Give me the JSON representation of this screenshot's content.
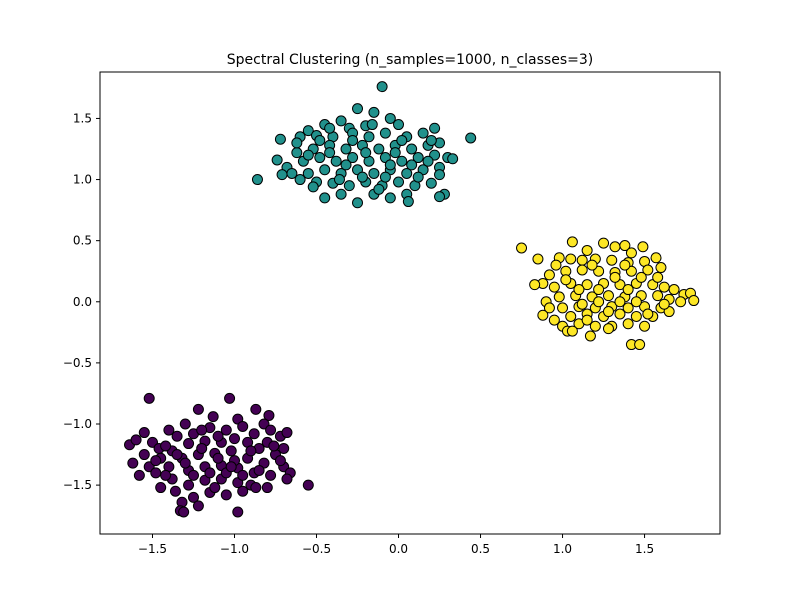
{
  "chart_data": {
    "type": "scatter",
    "title": "Spectral Clustering (n_samples=1000, n_classes=3)",
    "xlabel": "",
    "ylabel": "",
    "xlim": [
      -1.82,
      1.96
    ],
    "ylim": [
      -1.9,
      1.88
    ],
    "xticks": [
      -1.5,
      -1.0,
      -0.5,
      0.0,
      0.5,
      1.0,
      1.5
    ],
    "xtick_labels": [
      "−1.5",
      "−1.0",
      "−0.5",
      "0.0",
      "0.5",
      "1.0",
      "1.5"
    ],
    "yticks": [
      -1.5,
      -1.0,
      -0.5,
      0.0,
      0.5,
      1.0,
      1.5
    ],
    "ytick_labels": [
      "−1.5",
      "−1.0",
      "−0.5",
      "0.0",
      "0.5",
      "1.0",
      "1.5"
    ],
    "grid": false,
    "legend": "none",
    "marker_edge_color": "#000000",
    "series": [
      {
        "cluster": 0,
        "color": "#440154",
        "center": [
          -1.1,
          -1.3
        ],
        "points": [
          [
            -1.52,
            -0.79
          ],
          [
            -1.03,
            -0.79
          ],
          [
            -0.87,
            -0.88
          ],
          [
            -1.22,
            -0.88
          ],
          [
            -1.13,
            -0.94
          ],
          [
            -0.98,
            -0.96
          ],
          [
            -0.79,
            -0.93
          ],
          [
            -0.82,
            -1.0
          ],
          [
            -1.3,
            -1.0
          ],
          [
            -1.4,
            -1.05
          ],
          [
            -1.55,
            -1.07
          ],
          [
            -1.64,
            -1.17
          ],
          [
            -1.6,
            -1.13
          ],
          [
            -1.5,
            -1.15
          ],
          [
            -1.46,
            -1.2
          ],
          [
            -1.35,
            -1.1
          ],
          [
            -1.25,
            -1.08
          ],
          [
            -1.15,
            -1.03
          ],
          [
            -1.05,
            -1.05
          ],
          [
            -0.95,
            -1.02
          ],
          [
            -0.88,
            -1.08
          ],
          [
            -0.78,
            -1.05
          ],
          [
            -0.72,
            -1.1
          ],
          [
            -0.68,
            -1.07
          ],
          [
            -0.7,
            -1.2
          ],
          [
            -0.75,
            -1.25
          ],
          [
            -0.85,
            -1.2
          ],
          [
            -0.92,
            -1.15
          ],
          [
            -1.0,
            -1.12
          ],
          [
            -1.08,
            -1.15
          ],
          [
            -1.18,
            -1.14
          ],
          [
            -1.28,
            -1.16
          ],
          [
            -1.38,
            -1.22
          ],
          [
            -1.45,
            -1.28
          ],
          [
            -1.52,
            -1.35
          ],
          [
            -1.62,
            -1.32
          ],
          [
            -1.58,
            -1.42
          ],
          [
            -1.48,
            -1.4
          ],
          [
            -1.4,
            -1.35
          ],
          [
            -1.32,
            -1.28
          ],
          [
            -1.22,
            -1.25
          ],
          [
            -1.12,
            -1.24
          ],
          [
            -1.02,
            -1.22
          ],
          [
            -0.92,
            -1.28
          ],
          [
            -0.82,
            -1.32
          ],
          [
            -0.7,
            -1.35
          ],
          [
            -0.66,
            -1.4
          ],
          [
            -0.68,
            -1.45
          ],
          [
            -0.78,
            -1.42
          ],
          [
            -0.88,
            -1.4
          ],
          [
            -0.98,
            -1.36
          ],
          [
            -1.08,
            -1.34
          ],
          [
            -1.18,
            -1.35
          ],
          [
            -1.28,
            -1.38
          ],
          [
            -1.38,
            -1.45
          ],
          [
            -1.45,
            -1.52
          ],
          [
            -1.36,
            -1.55
          ],
          [
            -1.28,
            -1.5
          ],
          [
            -1.18,
            -1.46
          ],
          [
            -1.08,
            -1.45
          ],
          [
            -0.98,
            -1.48
          ],
          [
            -0.9,
            -1.5
          ],
          [
            -0.8,
            -1.52
          ],
          [
            -0.55,
            -1.5
          ],
          [
            -0.95,
            -1.55
          ],
          [
            -1.05,
            -1.58
          ],
          [
            -1.15,
            -1.56
          ],
          [
            -1.25,
            -1.6
          ],
          [
            -1.32,
            -1.64
          ],
          [
            -1.22,
            -1.67
          ],
          [
            -1.33,
            -1.71
          ],
          [
            -1.31,
            -1.72
          ],
          [
            -0.98,
            -1.72
          ],
          [
            -0.87,
            -1.52
          ],
          [
            -1.42,
            -1.18
          ],
          [
            -1.2,
            -1.2
          ],
          [
            -1.1,
            -1.28
          ],
          [
            -1.0,
            -1.3
          ],
          [
            -0.9,
            -1.22
          ],
          [
            -1.3,
            -1.32
          ],
          [
            -1.15,
            -1.4
          ],
          [
            -1.05,
            -1.4
          ],
          [
            -0.95,
            -1.42
          ],
          [
            -1.25,
            -1.42
          ],
          [
            -1.35,
            -1.25
          ],
          [
            -1.48,
            -1.3
          ],
          [
            -1.55,
            -1.25
          ],
          [
            -1.2,
            -1.05
          ],
          [
            -1.1,
            -1.1
          ],
          [
            -0.8,
            -1.15
          ],
          [
            -0.72,
            -1.3
          ],
          [
            -0.85,
            -1.38
          ],
          [
            -1.42,
            -1.42
          ],
          [
            -1.12,
            -1.52
          ],
          [
            -1.02,
            -1.35
          ],
          [
            -0.76,
            -1.18
          ]
        ]
      },
      {
        "cluster": 1,
        "color": "#21918c",
        "center": [
          -0.15,
          1.1
        ],
        "points": [
          [
            -0.1,
            1.76
          ],
          [
            -0.25,
            1.58
          ],
          [
            -0.15,
            1.55
          ],
          [
            -0.35,
            1.48
          ],
          [
            -0.45,
            1.45
          ],
          [
            -0.3,
            1.42
          ],
          [
            -0.2,
            1.44
          ],
          [
            -0.05,
            1.5
          ],
          [
            0.0,
            1.45
          ],
          [
            -0.55,
            1.4
          ],
          [
            -0.72,
            1.33
          ],
          [
            -0.6,
            1.35
          ],
          [
            -0.5,
            1.36
          ],
          [
            -0.4,
            1.35
          ],
          [
            -0.28,
            1.38
          ],
          [
            -0.18,
            1.35
          ],
          [
            -0.08,
            1.38
          ],
          [
            0.05,
            1.35
          ],
          [
            0.15,
            1.38
          ],
          [
            0.22,
            1.42
          ],
          [
            0.44,
            1.34
          ],
          [
            0.25,
            1.3
          ],
          [
            0.18,
            1.28
          ],
          [
            0.08,
            1.25
          ],
          [
            -0.02,
            1.28
          ],
          [
            -0.12,
            1.25
          ],
          [
            -0.22,
            1.28
          ],
          [
            -0.32,
            1.25
          ],
          [
            -0.42,
            1.28
          ],
          [
            -0.52,
            1.25
          ],
          [
            -0.62,
            1.22
          ],
          [
            -0.74,
            1.16
          ],
          [
            -0.68,
            1.1
          ],
          [
            -0.58,
            1.15
          ],
          [
            -0.48,
            1.18
          ],
          [
            -0.38,
            1.15
          ],
          [
            -0.28,
            1.18
          ],
          [
            -0.18,
            1.15
          ],
          [
            -0.08,
            1.18
          ],
          [
            0.02,
            1.15
          ],
          [
            0.12,
            1.18
          ],
          [
            0.22,
            1.2
          ],
          [
            0.3,
            1.18
          ],
          [
            0.33,
            1.17
          ],
          [
            0.25,
            1.1
          ],
          [
            0.15,
            1.08
          ],
          [
            0.05,
            1.05
          ],
          [
            -0.05,
            1.08
          ],
          [
            -0.15,
            1.05
          ],
          [
            -0.25,
            1.08
          ],
          [
            -0.35,
            1.05
          ],
          [
            -0.45,
            1.08
          ],
          [
            -0.55,
            1.05
          ],
          [
            -0.65,
            1.05
          ],
          [
            -0.71,
            1.04
          ],
          [
            -0.86,
            1.0
          ],
          [
            -0.6,
            1.0
          ],
          [
            -0.5,
            0.98
          ],
          [
            -0.4,
            0.97
          ],
          [
            -0.3,
            0.95
          ],
          [
            -0.2,
            0.98
          ],
          [
            -0.1,
            0.95
          ],
          [
            0.0,
            0.98
          ],
          [
            0.1,
            0.95
          ],
          [
            0.2,
            0.97
          ],
          [
            0.25,
            1.04
          ],
          [
            0.28,
            0.88
          ],
          [
            0.25,
            0.86
          ],
          [
            0.05,
            0.88
          ],
          [
            -0.05,
            0.85
          ],
          [
            -0.15,
            0.88
          ],
          [
            -0.25,
            0.81
          ],
          [
            -0.35,
            0.88
          ],
          [
            -0.45,
            0.85
          ],
          [
            -0.52,
            0.94
          ],
          [
            0.06,
            0.82
          ],
          [
            -0.12,
            0.92
          ],
          [
            -0.22,
            1.02
          ],
          [
            -0.32,
            1.12
          ],
          [
            -0.42,
            1.22
          ],
          [
            -0.02,
            1.22
          ],
          [
            0.08,
            1.12
          ],
          [
            -0.62,
            1.3
          ],
          [
            -0.48,
            1.32
          ],
          [
            0.12,
            1.02
          ],
          [
            0.2,
            1.32
          ],
          [
            -0.16,
            1.45
          ],
          [
            -0.36,
            1.0
          ],
          [
            -0.08,
            1.02
          ],
          [
            -0.28,
            1.32
          ],
          [
            0.02,
            1.32
          ],
          [
            -0.55,
            1.2
          ],
          [
            0.18,
            1.15
          ],
          [
            -0.42,
            1.42
          ],
          [
            -0.2,
            1.22
          ],
          [
            -0.05,
            1.12
          ]
        ]
      },
      {
        "cluster": 2,
        "color": "#fde725",
        "center": [
          1.25,
          0.08
        ],
        "points": [
          [
            1.06,
            0.49
          ],
          [
            1.25,
            0.48
          ],
          [
            1.32,
            0.45
          ],
          [
            1.38,
            0.46
          ],
          [
            1.49,
            0.45
          ],
          [
            1.15,
            0.42
          ],
          [
            1.42,
            0.4
          ],
          [
            0.75,
            0.44
          ],
          [
            0.85,
            0.35
          ],
          [
            0.98,
            0.36
          ],
          [
            1.05,
            0.35
          ],
          [
            1.12,
            0.34
          ],
          [
            1.2,
            0.35
          ],
          [
            1.3,
            0.34
          ],
          [
            1.4,
            0.32
          ],
          [
            1.5,
            0.33
          ],
          [
            1.57,
            0.36
          ],
          [
            1.6,
            0.28
          ],
          [
            1.52,
            0.26
          ],
          [
            1.42,
            0.25
          ],
          [
            1.32,
            0.24
          ],
          [
            1.22,
            0.25
          ],
          [
            1.12,
            0.26
          ],
          [
            1.02,
            0.25
          ],
          [
            0.92,
            0.22
          ],
          [
            0.88,
            0.15
          ],
          [
            0.83,
            0.14
          ],
          [
            0.95,
            0.12
          ],
          [
            1.05,
            0.15
          ],
          [
            1.15,
            0.14
          ],
          [
            1.25,
            0.15
          ],
          [
            1.35,
            0.14
          ],
          [
            1.45,
            0.15
          ],
          [
            1.55,
            0.14
          ],
          [
            1.62,
            0.12
          ],
          [
            1.68,
            0.1
          ],
          [
            1.74,
            0.06
          ],
          [
            1.78,
            0.07
          ],
          [
            1.8,
            0.01
          ],
          [
            1.72,
            0.0
          ],
          [
            1.65,
            0.02
          ],
          [
            1.58,
            0.05
          ],
          [
            1.48,
            0.05
          ],
          [
            1.38,
            0.04
          ],
          [
            1.28,
            0.05
          ],
          [
            1.18,
            0.04
          ],
          [
            1.08,
            0.05
          ],
          [
            0.98,
            0.04
          ],
          [
            0.9,
            0.0
          ],
          [
            0.92,
            -0.05
          ],
          [
            1.0,
            -0.05
          ],
          [
            1.1,
            -0.04
          ],
          [
            1.2,
            -0.05
          ],
          [
            1.3,
            -0.04
          ],
          [
            1.4,
            -0.05
          ],
          [
            1.5,
            -0.04
          ],
          [
            1.6,
            -0.05
          ],
          [
            1.65,
            -0.08
          ],
          [
            1.55,
            -0.12
          ],
          [
            1.45,
            -0.12
          ],
          [
            1.35,
            -0.1
          ],
          [
            1.25,
            -0.12
          ],
          [
            1.15,
            -0.1
          ],
          [
            1.05,
            -0.12
          ],
          [
            0.95,
            -0.15
          ],
          [
            0.88,
            -0.11
          ],
          [
            1.0,
            -0.2
          ],
          [
            1.1,
            -0.18
          ],
          [
            1.2,
            -0.2
          ],
          [
            1.3,
            -0.2
          ],
          [
            1.4,
            -0.18
          ],
          [
            1.5,
            -0.2
          ],
          [
            1.03,
            -0.24
          ],
          [
            1.06,
            -0.24
          ],
          [
            1.17,
            -0.28
          ],
          [
            1.28,
            -0.22
          ],
          [
            1.42,
            -0.35
          ],
          [
            1.47,
            -0.35
          ],
          [
            1.35,
            0.0
          ],
          [
            1.22,
            0.1
          ],
          [
            1.12,
            -0.02
          ],
          [
            1.32,
            0.2
          ],
          [
            1.45,
            0.0
          ],
          [
            1.02,
            0.18
          ],
          [
            1.58,
            0.2
          ],
          [
            1.18,
            0.3
          ],
          [
            1.4,
            0.1
          ],
          [
            1.28,
            -0.08
          ],
          [
            1.1,
            0.1
          ],
          [
            1.52,
            -0.1
          ],
          [
            1.38,
            0.3
          ],
          [
            1.22,
            0.0
          ],
          [
            0.96,
            0.3
          ],
          [
            1.48,
            0.2
          ],
          [
            1.62,
            -0.02
          ],
          [
            1.15,
            -0.15
          ]
        ]
      }
    ]
  }
}
